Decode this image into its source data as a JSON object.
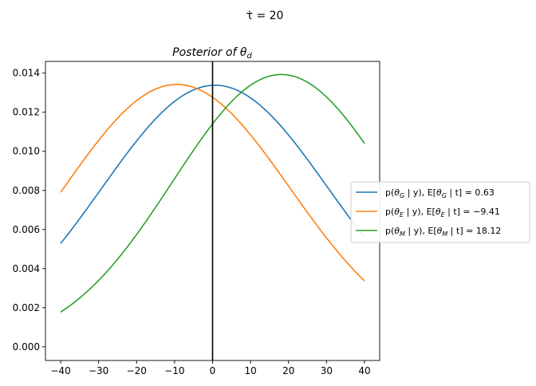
{
  "figure": {
    "suptitle": "τ̇ = 20"
  },
  "chart_data": {
    "type": "line",
    "title": "Posterior of θ",
    "title_sub": "d",
    "xlabel": "",
    "ylabel": "",
    "xlim": [
      -44,
      44
    ],
    "ylim": [
      -0.0007,
      0.0146
    ],
    "xticks": [
      -40,
      -30,
      -20,
      -10,
      0,
      10,
      20,
      30,
      40
    ],
    "yticks": [
      0.0,
      0.002,
      0.004,
      0.006,
      0.008,
      0.01,
      0.012,
      0.014
    ],
    "ytick_labels": [
      "0.000",
      "0.002",
      "0.004",
      "0.006",
      "0.008",
      "0.010",
      "0.012",
      "0.014"
    ],
    "vline": {
      "x": 0,
      "color": "#000000"
    },
    "grid": false,
    "legend_position": "right, outside plot",
    "x_domain": [
      -40,
      40
    ],
    "series": [
      {
        "name": "p(θG | y),  E[θG | t] = 0.63",
        "color": "#1f77b4",
        "mean": 0.63,
        "sd": 29.8,
        "peak": 0.01338
      },
      {
        "name": "p(θE | y),  E[θE | t] = −9.41",
        "color": "#ff7f0e",
        "mean": -9.41,
        "sd": 29.8,
        "peak": 0.01342
      },
      {
        "name": "p(θM | y),  E[θM | t] = 18.12",
        "color": "#2ca02c",
        "mean": 18.12,
        "sd": 28.6,
        "peak": 0.01393
      }
    ],
    "legend": [
      {
        "sym": "θ",
        "sub": "G",
        "val": "0.63",
        "color": "#1f77b4"
      },
      {
        "sym": "θ",
        "sub": "E",
        "val": "−9.41",
        "color": "#ff7f0e"
      },
      {
        "sym": "θ",
        "sub": "M",
        "val": "18.12",
        "color": "#2ca02c"
      }
    ]
  }
}
